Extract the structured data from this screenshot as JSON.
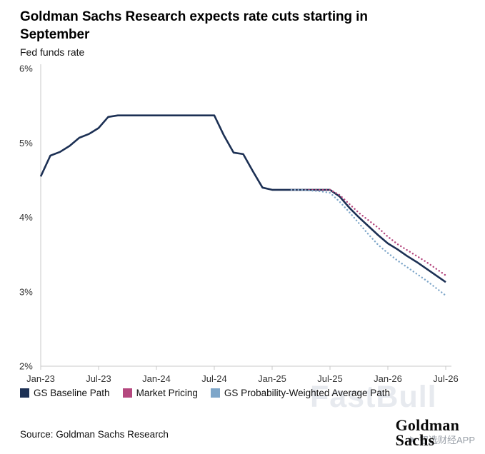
{
  "header": {
    "title": "Goldman Sachs Research expects rate cuts starting in September",
    "subtitle": "Fed funds rate"
  },
  "chart_data": {
    "type": "line",
    "title": "Goldman Sachs Research expects rate cuts starting in September",
    "subtitle": "Fed funds rate",
    "xlabel": "",
    "ylabel": "Fed funds rate (%)",
    "ylim": [
      2,
      6
    ],
    "grid": false,
    "legend_position": "bottom",
    "x_count": 43,
    "x_tick_indices": [
      0,
      6,
      12,
      18,
      24,
      30,
      36,
      42
    ],
    "x_tick_labels": [
      "Jan-23",
      "Jul-23",
      "Jan-24",
      "Jul-24",
      "Jan-25",
      "Jul-25",
      "Jan-26",
      "Jul-26"
    ],
    "y_ticks": [
      2,
      3,
      4,
      5,
      6
    ],
    "y_tick_suffix": "%",
    "series": [
      {
        "name": "GS Baseline Path",
        "color": "#1c3054",
        "dash": "",
        "width": 2.6,
        "values": [
          4.55,
          4.83,
          4.88,
          4.96,
          5.07,
          5.12,
          5.2,
          5.35,
          5.37,
          5.37,
          5.37,
          5.37,
          5.37,
          5.37,
          5.37,
          5.37,
          5.37,
          5.37,
          5.37,
          5.1,
          4.87,
          4.85,
          4.62,
          4.4,
          4.37,
          4.37,
          4.37,
          4.37,
          4.37,
          4.37,
          4.37,
          4.28,
          4.13,
          4.0,
          3.88,
          3.76,
          3.65,
          3.57,
          3.48,
          3.4,
          3.31,
          3.22,
          3.13
        ]
      },
      {
        "name": "Market Pricing",
        "color": "#b5487f",
        "dash": "0.1 4.8",
        "width": 2.4,
        "values": [
          null,
          null,
          null,
          null,
          null,
          null,
          null,
          null,
          null,
          null,
          null,
          null,
          null,
          null,
          null,
          null,
          null,
          null,
          null,
          null,
          null,
          null,
          null,
          null,
          null,
          null,
          4.37,
          4.37,
          4.37,
          4.37,
          4.37,
          4.3,
          4.18,
          4.06,
          3.96,
          3.86,
          3.74,
          3.64,
          3.56,
          3.48,
          3.4,
          3.31,
          3.22
        ]
      },
      {
        "name": "GS Probability-Weighted Average Path",
        "color": "#7ea6c9",
        "dash": "0.1 4.8",
        "width": 2.4,
        "values": [
          null,
          null,
          null,
          null,
          null,
          null,
          null,
          null,
          null,
          null,
          null,
          null,
          null,
          null,
          null,
          null,
          null,
          null,
          null,
          null,
          null,
          null,
          null,
          null,
          null,
          null,
          4.37,
          4.37,
          4.36,
          4.35,
          4.33,
          4.21,
          4.07,
          3.92,
          3.77,
          3.63,
          3.52,
          3.42,
          3.33,
          3.24,
          3.15,
          3.05,
          2.95
        ]
      }
    ]
  },
  "footer": {
    "source": "Source: Goldman Sachs Research",
    "brand_line1": "Goldman",
    "brand_line2": "Sachs",
    "watermark": "FastBull",
    "watermark_small": "智选财经APP"
  }
}
